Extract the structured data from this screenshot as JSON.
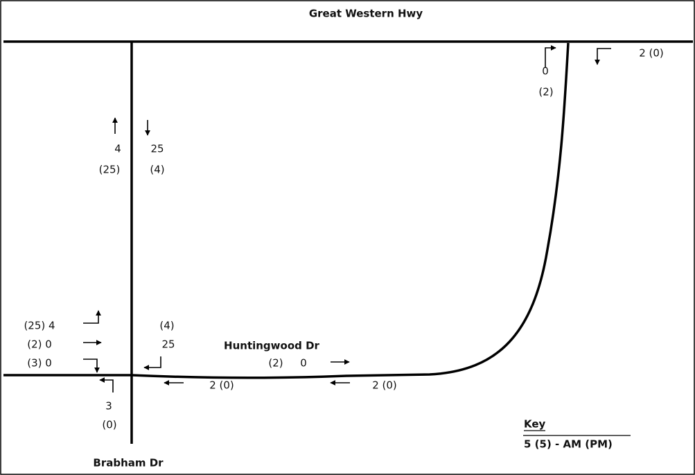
{
  "roads": [
    "Great Western Hwy",
    "Huntingwood Dr",
    "Brabham Dr"
  ],
  "volumes": [
    "4",
    "(25)",
    "25",
    "(4)",
    "0",
    "(2)",
    "2 (0)",
    "(25) 4",
    "(2) 0",
    "(3) 0",
    "(4)",
    "25",
    "3",
    "(0)",
    "2 (0)",
    "(2)",
    "0",
    "2 (0)"
  ],
  "key": {
    "title": "Key",
    "text": "5 (5) - AM (PM)"
  }
}
